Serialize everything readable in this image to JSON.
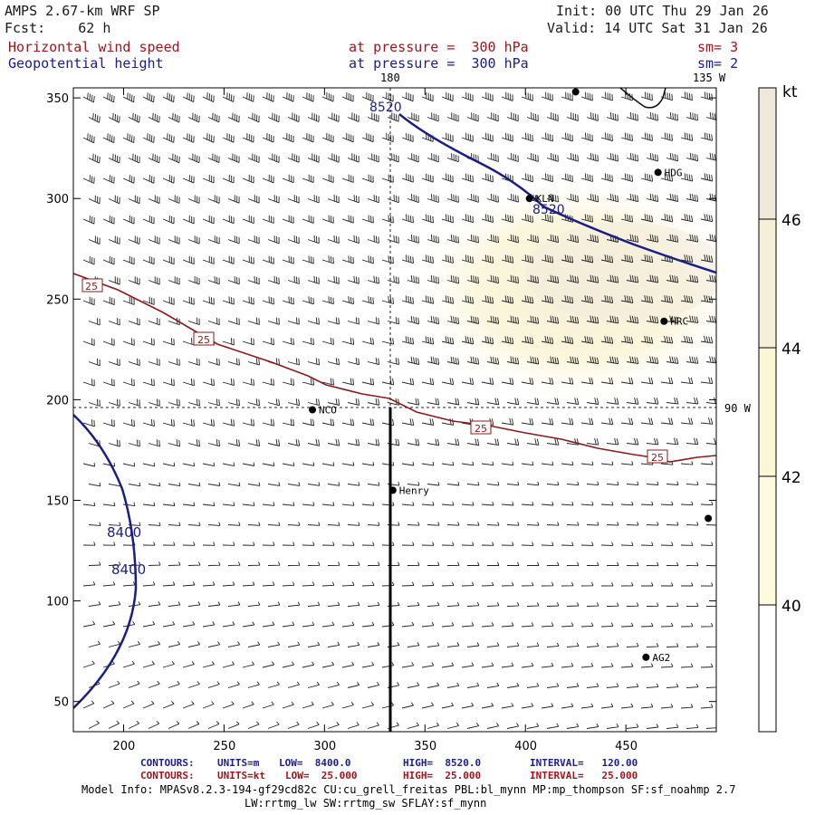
{
  "header": {
    "model": "AMPS 2.67-km WRF SP",
    "init": "Init: 00 UTC Thu 29 Jan 26",
    "fcst": "Fcst:    62 h",
    "valid": "Valid: 14 UTC Sat 31 Jan 26",
    "field1": {
      "name": "Horizontal wind speed",
      "level": "at pressure =  300 hPa",
      "sm": "sm= 3"
    },
    "field2": {
      "name": "Geopotential height",
      "level": "at pressure =  300 hPa",
      "sm": "sm= 2"
    }
  },
  "map": {
    "lon_labels": {
      "top": "180",
      "top_right": "135 W",
      "right": "90 W"
    },
    "x_ticks": [
      "200",
      "250",
      "300",
      "350",
      "400",
      "450"
    ],
    "y_ticks": [
      "350",
      "300",
      "250",
      "200",
      "150",
      "100",
      "50"
    ],
    "stations": [
      {
        "name": "KLN",
        "x": 402,
        "y": 300
      },
      {
        "name": "HDG",
        "x": 466,
        "y": 313
      },
      {
        "name": "HRC",
        "x": 469,
        "y": 239
      },
      {
        "name": "NCO",
        "x": 294,
        "y": 195
      },
      {
        "name": "Henry",
        "x": 334,
        "y": 155
      },
      {
        "name": "AG2",
        "x": 460,
        "y": 72
      },
      {
        "name": "",
        "x": 425,
        "y": 353
      },
      {
        "name": "",
        "x": 491,
        "y": 141
      }
    ],
    "height_contours": {
      "color": "#1a1f85",
      "labels": [
        "8520",
        "8520",
        "8400",
        "8400"
      ]
    },
    "wind_contour": {
      "color": "#8b1a1a",
      "labels": [
        "25",
        "25",
        "25",
        "25"
      ]
    }
  },
  "colorbar": {
    "unit": "kt",
    "ticks": [
      "46",
      "44",
      "42",
      "40"
    ],
    "colors": [
      "#f1e8dc",
      "#f6efd8",
      "#fbf6d4",
      "#fdfadf",
      "#fefef3",
      "#ffffff"
    ]
  },
  "footer": {
    "line1": {
      "label": "CONTOURS:",
      "units": "UNITS=m",
      "low": "LOW=  8400.0",
      "high": "HIGH=  8520.0",
      "interval": "INTERVAL=   120.00"
    },
    "line2": {
      "label": "CONTOURS:",
      "units": "UNITS=kt",
      "low": "LOW=  25.000",
      "high": "HIGH=  25.000",
      "interval": "INTERVAL=   25.000"
    },
    "model_info": "Model Info: MPASv8.2.3-194-gf29cd82c CU:cu_grell_freitas PBL:bl_mynn MP:mp_thompson SF:sf_noahmp 2.7",
    "model_info2": "LW:rrtmg_lw SW:rrtmg_sw SFLAY:sf_mynn"
  }
}
